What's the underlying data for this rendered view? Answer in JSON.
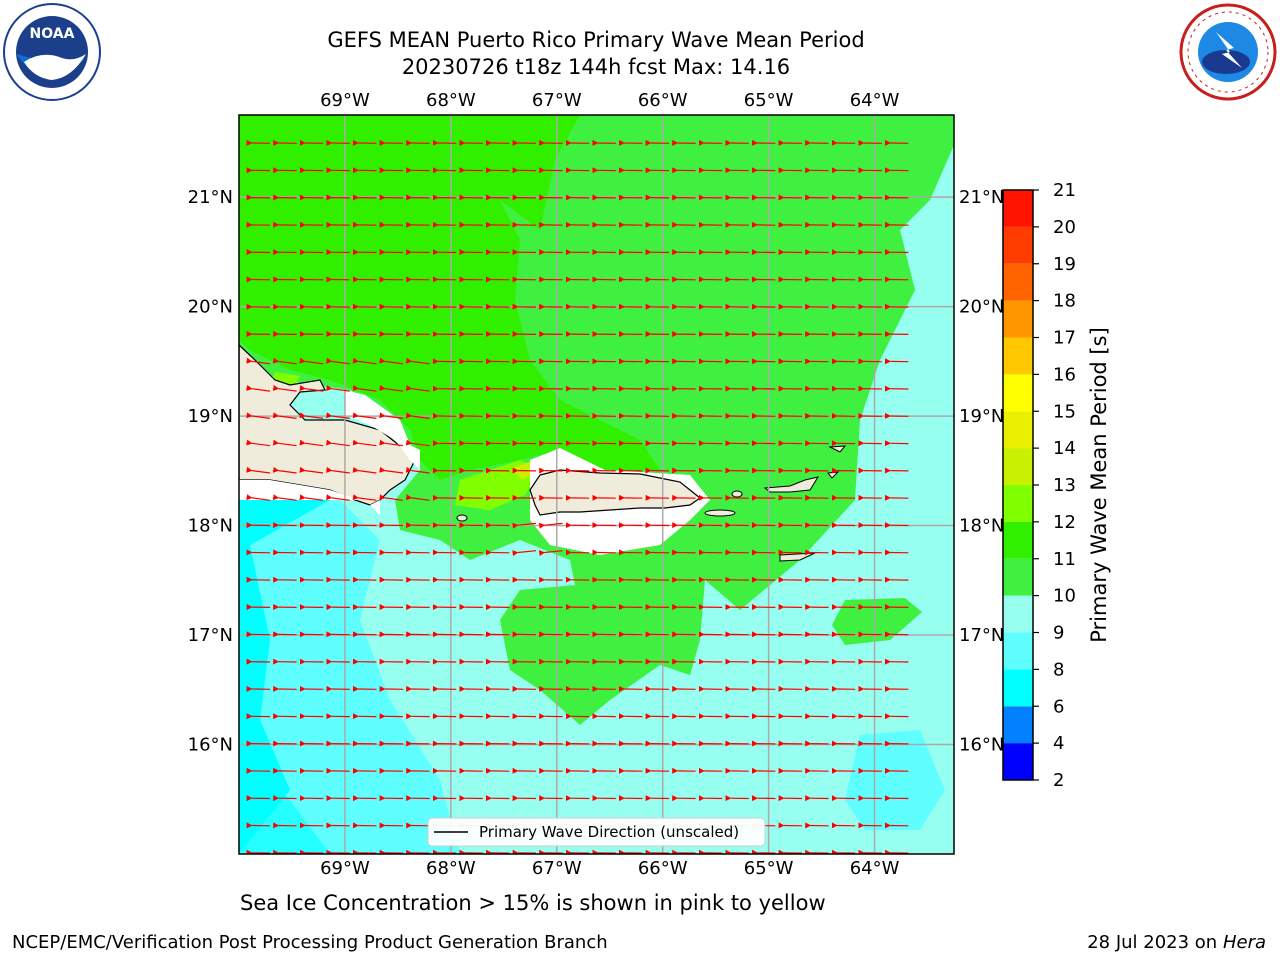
{
  "title": {
    "line1": "GEFS MEAN Puerto Rico Primary Wave Mean Period",
    "line2": "20230726 t18z 144h fcst   Max: 14.16"
  },
  "map": {
    "lon_range": [
      -70,
      -63.25
    ],
    "lat_range": [
      15,
      21.75
    ],
    "lon_ticks": [
      "69°W",
      "68°W",
      "67°W",
      "66°W",
      "65°W",
      "64°W"
    ],
    "lat_ticks": [
      "21°N",
      "20°N",
      "19°N",
      "18°N",
      "17°N",
      "16°N"
    ],
    "legend_label": "Primary Wave Direction (unscaled)"
  },
  "colorbar": {
    "label": "Primary Wave Mean Period [s]",
    "ticks": [
      "2",
      "4",
      "6",
      "8",
      "9",
      "10",
      "11",
      "12",
      "13",
      "14",
      "15",
      "16",
      "17",
      "18",
      "19",
      "20",
      "21"
    ],
    "colors": [
      "#0000ff",
      "#0080ff",
      "#00ffff",
      "#5fffff",
      "#97ffef",
      "#40f040",
      "#30f000",
      "#80ff00",
      "#c8f000",
      "#e8f000",
      "#ffff00",
      "#ffc800",
      "#ff9600",
      "#ff6400",
      "#ff3c00",
      "#ff1400"
    ]
  },
  "caption": "Sea Ice Concentration > 15% is shown in pink to yellow",
  "footer": {
    "credit": "NCEP/EMC/Verification Post Processing Product Generation Branch",
    "date": "28 Jul 2023 on ",
    "host": "Hera"
  },
  "logos": {
    "left_icon": "noaa-logo-icon",
    "left_text": "NOAA",
    "right_icon": "nws-logo-icon"
  }
}
